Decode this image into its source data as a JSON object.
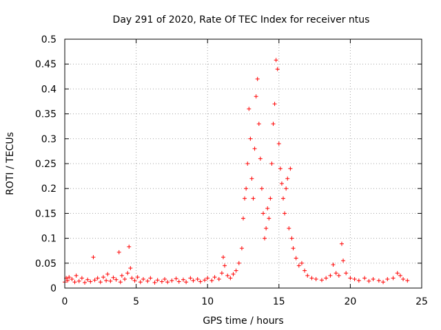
{
  "chart_data": {
    "type": "scatter",
    "title": "Day 291 of 2020, Rate Of TEC Index for receiver ntus",
    "xlabel": "GPS time / hours",
    "ylabel": "ROTI / TECUs",
    "xlim": [
      0,
      25
    ],
    "ylim": [
      0,
      0.5
    ],
    "xticks": [
      0,
      5,
      10,
      15,
      20,
      25
    ],
    "yticks": [
      0,
      0.05,
      0.1,
      0.15,
      0.2,
      0.25,
      0.3,
      0.35,
      0.4,
      0.45,
      0.5
    ],
    "xtick_labels": [
      "0",
      "5",
      "10",
      "15",
      "20",
      "25"
    ],
    "ytick_labels": [
      "0",
      "0.05",
      "0.1",
      "0.15",
      "0.2",
      "0.25",
      "0.3",
      "0.35",
      "0.4",
      "0.45",
      "0.5"
    ],
    "grid": true,
    "marker": "+",
    "series": [
      {
        "name": "ROTI",
        "color": "#ff0000",
        "points": [
          [
            0.0,
            0.012
          ],
          [
            0.1,
            0.02
          ],
          [
            0.2,
            0.015
          ],
          [
            0.3,
            0.022
          ],
          [
            0.5,
            0.018
          ],
          [
            0.7,
            0.012
          ],
          [
            0.8,
            0.025
          ],
          [
            1.0,
            0.014
          ],
          [
            1.2,
            0.02
          ],
          [
            1.4,
            0.011
          ],
          [
            1.6,
            0.017
          ],
          [
            1.8,
            0.013
          ],
          [
            2.0,
            0.062
          ],
          [
            2.1,
            0.016
          ],
          [
            2.3,
            0.02
          ],
          [
            2.5,
            0.012
          ],
          [
            2.7,
            0.022
          ],
          [
            2.9,
            0.015
          ],
          [
            3.0,
            0.028
          ],
          [
            3.2,
            0.014
          ],
          [
            3.4,
            0.021
          ],
          [
            3.6,
            0.017
          ],
          [
            3.8,
            0.072
          ],
          [
            3.9,
            0.012
          ],
          [
            4.0,
            0.025
          ],
          [
            4.2,
            0.018
          ],
          [
            4.4,
            0.03
          ],
          [
            4.5,
            0.083
          ],
          [
            4.6,
            0.04
          ],
          [
            4.7,
            0.02
          ],
          [
            4.9,
            0.015
          ],
          [
            5.1,
            0.022
          ],
          [
            5.3,
            0.012
          ],
          [
            5.5,
            0.018
          ],
          [
            5.8,
            0.014
          ],
          [
            6.0,
            0.02
          ],
          [
            6.3,
            0.011
          ],
          [
            6.5,
            0.016
          ],
          [
            6.8,
            0.013
          ],
          [
            7.0,
            0.018
          ],
          [
            7.2,
            0.012
          ],
          [
            7.5,
            0.015
          ],
          [
            7.8,
            0.019
          ],
          [
            8.0,
            0.013
          ],
          [
            8.3,
            0.017
          ],
          [
            8.5,
            0.012
          ],
          [
            8.8,
            0.02
          ],
          [
            9.0,
            0.015
          ],
          [
            9.3,
            0.018
          ],
          [
            9.5,
            0.013
          ],
          [
            9.8,
            0.016
          ],
          [
            10.0,
            0.02
          ],
          [
            10.3,
            0.015
          ],
          [
            10.5,
            0.022
          ],
          [
            10.8,
            0.018
          ],
          [
            11.0,
            0.03
          ],
          [
            11.1,
            0.062
          ],
          [
            11.2,
            0.045
          ],
          [
            11.4,
            0.025
          ],
          [
            11.6,
            0.02
          ],
          [
            11.8,
            0.028
          ],
          [
            12.0,
            0.035
          ],
          [
            12.2,
            0.05
          ],
          [
            12.4,
            0.08
          ],
          [
            12.5,
            0.14
          ],
          [
            12.6,
            0.18
          ],
          [
            12.7,
            0.2
          ],
          [
            12.8,
            0.25
          ],
          [
            12.9,
            0.36
          ],
          [
            13.0,
            0.3
          ],
          [
            13.1,
            0.22
          ],
          [
            13.2,
            0.18
          ],
          [
            13.3,
            0.28
          ],
          [
            13.4,
            0.385
          ],
          [
            13.5,
            0.42
          ],
          [
            13.6,
            0.33
          ],
          [
            13.7,
            0.26
          ],
          [
            13.8,
            0.2
          ],
          [
            13.9,
            0.15
          ],
          [
            14.0,
            0.1
          ],
          [
            14.1,
            0.12
          ],
          [
            14.2,
            0.16
          ],
          [
            14.3,
            0.14
          ],
          [
            14.4,
            0.18
          ],
          [
            14.5,
            0.25
          ],
          [
            14.6,
            0.33
          ],
          [
            14.7,
            0.37
          ],
          [
            14.8,
            0.458
          ],
          [
            14.9,
            0.44
          ],
          [
            15.0,
            0.29
          ],
          [
            15.1,
            0.24
          ],
          [
            15.2,
            0.21
          ],
          [
            15.3,
            0.18
          ],
          [
            15.4,
            0.15
          ],
          [
            15.5,
            0.2
          ],
          [
            15.6,
            0.22
          ],
          [
            15.7,
            0.12
          ],
          [
            15.8,
            0.24
          ],
          [
            15.9,
            0.1
          ],
          [
            16.0,
            0.08
          ],
          [
            16.2,
            0.06
          ],
          [
            16.4,
            0.045
          ],
          [
            16.6,
            0.05
          ],
          [
            16.8,
            0.035
          ],
          [
            17.0,
            0.025
          ],
          [
            17.3,
            0.02
          ],
          [
            17.6,
            0.018
          ],
          [
            18.0,
            0.016
          ],
          [
            18.3,
            0.02
          ],
          [
            18.6,
            0.025
          ],
          [
            18.8,
            0.047
          ],
          [
            19.0,
            0.03
          ],
          [
            19.2,
            0.025
          ],
          [
            19.4,
            0.089
          ],
          [
            19.5,
            0.055
          ],
          [
            19.7,
            0.03
          ],
          [
            20.0,
            0.02
          ],
          [
            20.3,
            0.018
          ],
          [
            20.6,
            0.015
          ],
          [
            21.0,
            0.02
          ],
          [
            21.3,
            0.014
          ],
          [
            21.6,
            0.018
          ],
          [
            22.0,
            0.015
          ],
          [
            22.3,
            0.012
          ],
          [
            22.6,
            0.018
          ],
          [
            23.0,
            0.02
          ],
          [
            23.3,
            0.03
          ],
          [
            23.5,
            0.025
          ],
          [
            23.7,
            0.018
          ],
          [
            24.0,
            0.015
          ]
        ]
      }
    ]
  }
}
